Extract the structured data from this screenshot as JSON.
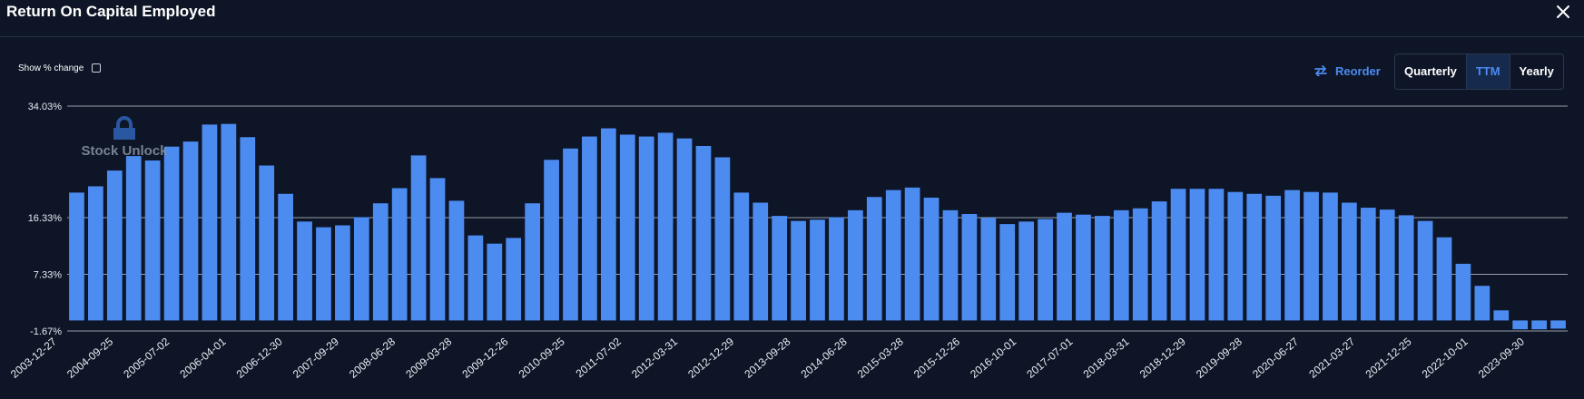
{
  "header": {
    "title": "Return On Capital Employed"
  },
  "controls": {
    "show_change_label": "Show % change",
    "reorder_label": "Reorder",
    "periods": [
      "Quarterly",
      "TTM",
      "Yearly"
    ],
    "active_period": "TTM"
  },
  "watermark": {
    "text": "Stock Unlock"
  },
  "colors": {
    "background": "#0d1526",
    "bar": "#4c8bf0",
    "accent": "#4c8bf0",
    "grid": "#c5ccd6"
  },
  "chart_data": {
    "type": "bar",
    "ylim": [
      -1.67,
      34.03
    ],
    "yticks": [
      "34.03%",
      "16.33%",
      "7.33%",
      "-1.67%"
    ],
    "ytick_values": [
      34.03,
      16.33,
      7.33,
      -1.67
    ],
    "xticks": [
      "2003-12-27",
      "2004-09-25",
      "2005-07-02",
      "2006-04-01",
      "2006-12-30",
      "2007-09-29",
      "2008-06-28",
      "2009-03-28",
      "2009-12-26",
      "2010-09-25",
      "2011-07-02",
      "2012-03-31",
      "2012-12-29",
      "2013-09-28",
      "2014-06-28",
      "2015-03-28",
      "2015-12-26",
      "2016-10-01",
      "2017-07-01",
      "2018-03-31",
      "2018-12-29",
      "2019-09-28",
      "2020-06-27",
      "2021-03-27",
      "2021-12-25",
      "2022-10-01",
      "2023-09-30"
    ],
    "values": [
      20.3,
      21.3,
      23.8,
      26.1,
      25.4,
      27.6,
      28.4,
      31.1,
      31.2,
      29.1,
      24.6,
      20.1,
      15.7,
      14.8,
      15.1,
      16.4,
      18.6,
      21.0,
      26.2,
      22.6,
      19.0,
      13.5,
      12.2,
      13.1,
      18.6,
      25.5,
      27.3,
      29.2,
      30.5,
      29.5,
      29.2,
      29.8,
      28.9,
      27.7,
      25.9,
      20.3,
      18.7,
      16.6,
      15.8,
      16.0,
      16.4,
      17.5,
      19.6,
      20.7,
      21.1,
      19.5,
      17.5,
      16.9,
      16.3,
      15.3,
      15.7,
      16.1,
      17.1,
      16.8,
      16.6,
      17.5,
      17.8,
      18.9,
      20.9,
      20.9,
      20.9,
      20.4,
      20.1,
      19.8,
      20.7,
      20.4,
      20.3,
      18.7,
      17.9,
      17.6,
      16.7,
      15.8,
      13.2,
      9.0,
      5.5,
      1.6,
      -1.4,
      -1.4,
      -1.3
    ]
  }
}
